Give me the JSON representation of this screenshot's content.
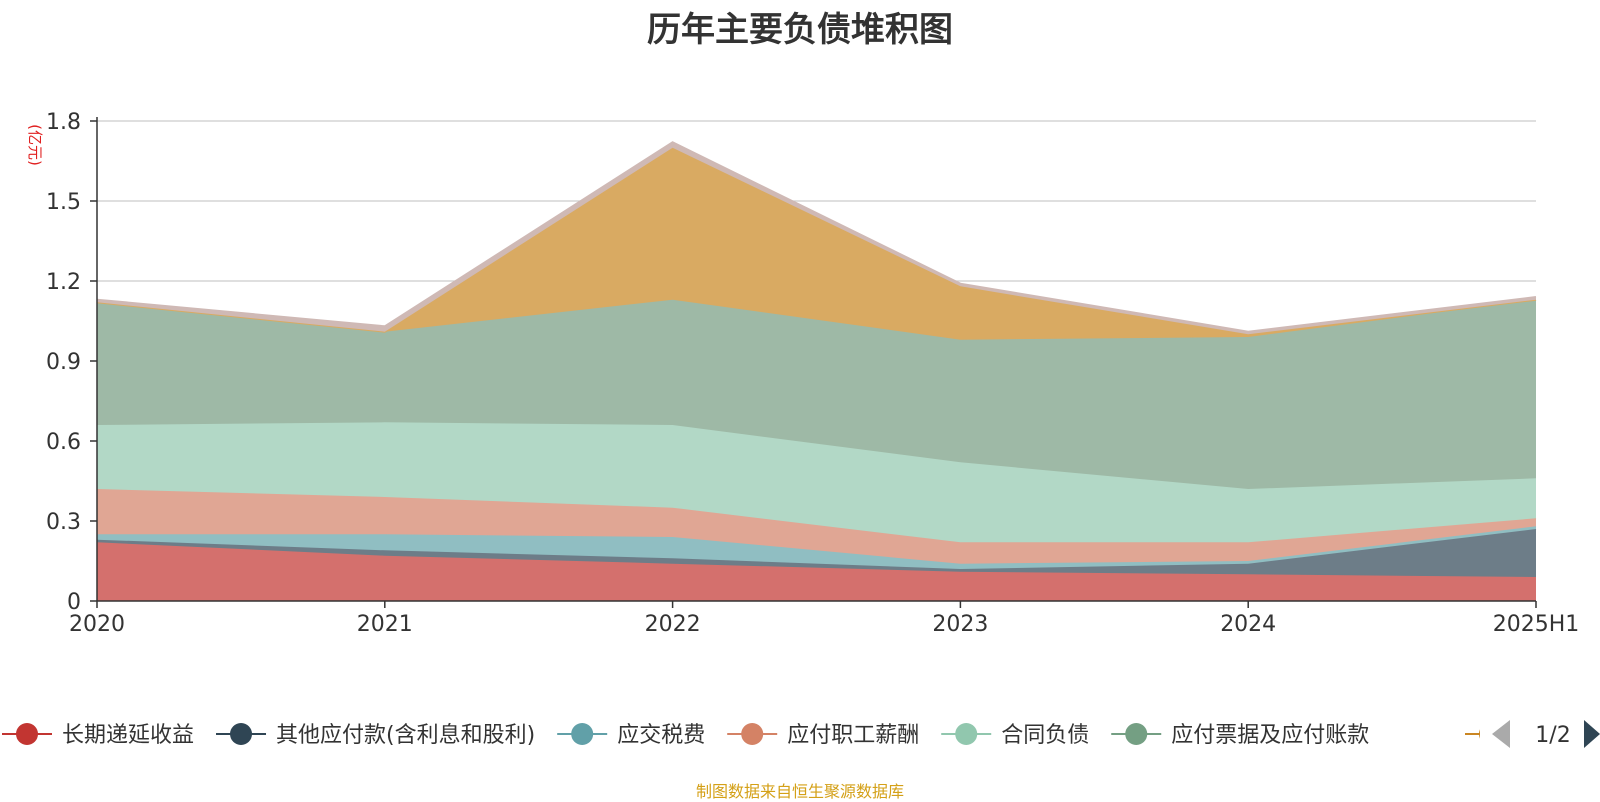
{
  "chart_data": {
    "type": "area",
    "stacked": true,
    "title": "历年主要负债堆积图",
    "yunit": "(亿元)",
    "ylim": [
      0,
      1.8
    ],
    "yticks": [
      "0",
      "0.3",
      "0.6",
      "0.9",
      "1.2",
      "1.5",
      "1.8"
    ],
    "ytick_values": [
      0,
      0.3,
      0.6,
      0.9,
      1.2,
      1.5,
      1.8
    ],
    "grid": true,
    "categories": [
      "2020",
      "2021",
      "2022",
      "2023",
      "2024",
      "2025H1"
    ],
    "series": [
      {
        "name": "长期递延收益",
        "color": "#c23531",
        "fill": "#d4706d",
        "values": [
          0.22,
          0.17,
          0.14,
          0.11,
          0.1,
          0.09
        ]
      },
      {
        "name": "其他应付款(含利息和股利)",
        "color": "#2f4554",
        "fill": "#6d7d88",
        "values": [
          0.01,
          0.02,
          0.02,
          0.01,
          0.04,
          0.18
        ]
      },
      {
        "name": "应交税费",
        "color": "#61a0a8",
        "fill": "#90bec2",
        "values": [
          0.02,
          0.06,
          0.08,
          0.02,
          0.01,
          0.01
        ]
      },
      {
        "name": "应付职工薪酬",
        "color": "#d48265",
        "fill": "#e0a694",
        "values": [
          0.17,
          0.14,
          0.11,
          0.08,
          0.07,
          0.03
        ]
      },
      {
        "name": "合同负债",
        "color": "#91c7ae",
        "fill": "#b2d8c6",
        "values": [
          0.24,
          0.28,
          0.31,
          0.3,
          0.2,
          0.15
        ]
      },
      {
        "name": "应付票据及应付账款",
        "color": "#749f83",
        "fill": "#9eb9a6",
        "values": [
          0.46,
          0.34,
          0.47,
          0.46,
          0.57,
          0.67
        ]
      },
      {
        "name": "",
        "color": "#ca8622",
        "fill": "#d9aa62",
        "values": [
          0.0,
          0.0,
          0.57,
          0.2,
          0.01,
          0.0
        ]
      },
      {
        "name": "",
        "color": "#bda29a",
        "fill": "#cfb9b5",
        "values": [
          0.01,
          0.02,
          0.02,
          0.01,
          0.01,
          0.01
        ]
      }
    ],
    "legend_placement": "bottom"
  },
  "legend": {
    "page": "1/2",
    "items": [
      {
        "label": "长期递延收益",
        "color": "#c23531"
      },
      {
        "label": "其他应付款(含利息和股利)",
        "color": "#2f4554"
      },
      {
        "label": "应交税费",
        "color": "#61a0a8"
      },
      {
        "label": "应付职工薪酬",
        "color": "#d48265"
      },
      {
        "label": "合同负债",
        "color": "#91c7ae"
      },
      {
        "label": "应付票据及应付账款",
        "color": "#749f83"
      }
    ],
    "partial_item_color": "#ca8622"
  },
  "footer": {
    "source": "制图数据来自恒生聚源数据库"
  }
}
